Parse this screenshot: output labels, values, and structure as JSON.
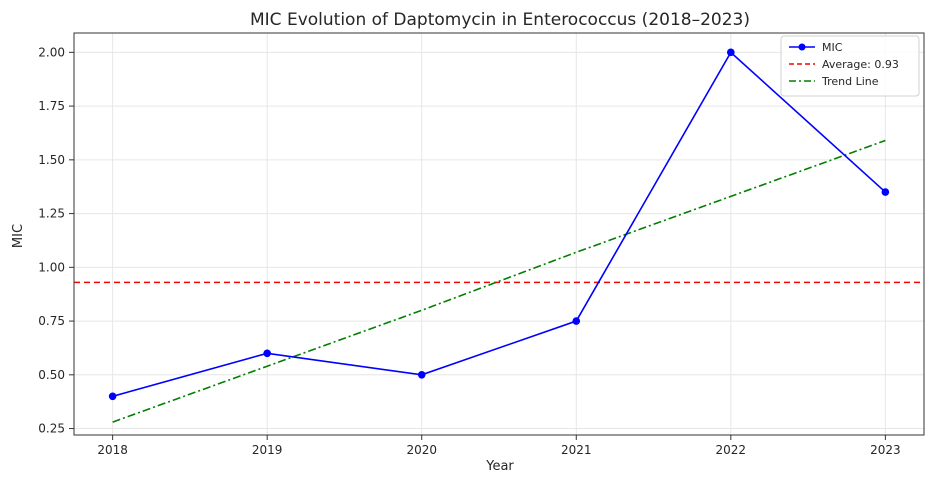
{
  "chart_data": {
    "type": "line",
    "title": "MIC Evolution of Daptomycin in Enterococcus (2018–2023)",
    "xlabel": "Year",
    "ylabel": "MIC",
    "x": [
      "2018",
      "2019",
      "2020",
      "2021",
      "2022",
      "2023"
    ],
    "xlim": [
      2017.75,
      2023.25
    ],
    "ylim": [
      0.22,
      2.09
    ],
    "yticks": [
      "0.25",
      "0.50",
      "0.75",
      "1.00",
      "1.25",
      "1.50",
      "1.75",
      "2.00"
    ],
    "grid": true,
    "legend_position": "top-right",
    "series": [
      {
        "name": "MIC",
        "values": [
          0.4,
          0.6,
          0.5,
          0.75,
          2.0,
          1.35
        ],
        "color": "#0000ff",
        "style": "solid-markers"
      },
      {
        "name": "Average: 0.93",
        "value": 0.93,
        "color": "#ff0000",
        "style": "dashed"
      },
      {
        "name": "Trend Line",
        "values": [
          0.28,
          0.54,
          0.8,
          1.07,
          1.33,
          1.59
        ],
        "color": "#008000",
        "style": "dashdot"
      }
    ]
  }
}
